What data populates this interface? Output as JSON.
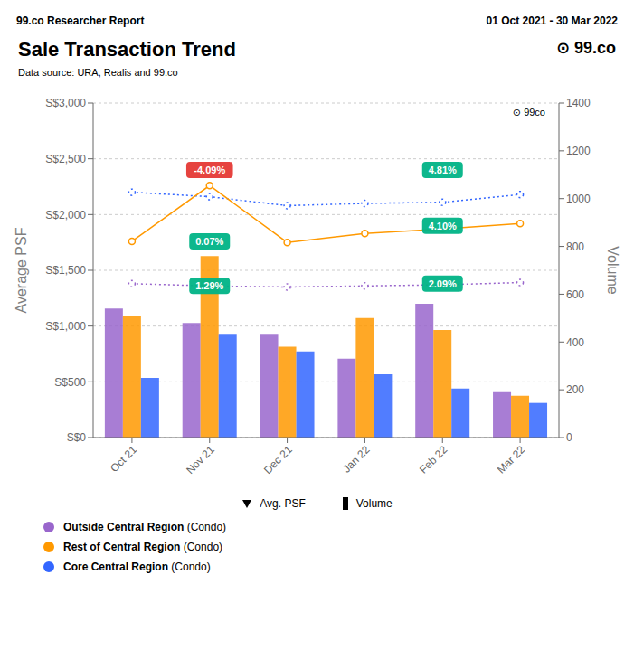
{
  "chart_data": {
    "type": "bar",
    "header_left": "99.co Researcher Report",
    "header_right": "01 Oct 2021 - 30 Mar 2022",
    "logo": "⊙ 99.co",
    "title": "Sale Transaction Trend",
    "subtitle": "Data source: URA, Realis and 99.co",
    "watermark": "⊙ 99co",
    "categories": [
      "Oct 21",
      "Nov 21",
      "Dec 21",
      "Jan 22",
      "Feb 22",
      "Mar 22"
    ],
    "series": [
      {
        "name": "Outside Central Region (Condo)",
        "type": "bar",
        "axis": "y2",
        "color": "#9966cc",
        "values": [
          540,
          480,
          430,
          330,
          560,
          190
        ]
      },
      {
        "name": "Rest of Central Region (Condo)",
        "type": "bar",
        "axis": "y2",
        "color": "#ff9900",
        "values": [
          510,
          760,
          380,
          500,
          450,
          175
        ]
      },
      {
        "name": "Core Central Region (Condo)",
        "type": "bar",
        "axis": "y2",
        "color": "#3366ff",
        "values": [
          250,
          430,
          360,
          265,
          205,
          145
        ]
      },
      {
        "type": "line",
        "color": "#3366ff",
        "marker": "circle",
        "line_style": "dotted",
        "values": [
          2200,
          2160,
          2080,
          2100,
          2110,
          2180
        ]
      },
      {
        "type": "line",
        "color": "#ff9900",
        "marker": "circle",
        "line_style": "solid",
        "values": [
          1760,
          2260,
          1750,
          1830,
          1870,
          1920
        ]
      },
      {
        "type": "line",
        "color": "#9966cc",
        "marker": "circle",
        "line_style": "dotted",
        "values": [
          1380,
          1360,
          1350,
          1360,
          1370,
          1390
        ]
      }
    ],
    "ylabel": "Average PSF",
    "y2label": "Volume",
    "ylim": [
      0,
      3000
    ],
    "yticks": [
      {
        "value": 0,
        "label": "S$0"
      },
      {
        "value": 500,
        "label": "S$500"
      },
      {
        "value": 1000,
        "label": "S$1,000"
      },
      {
        "value": 1500,
        "label": "S$1,500"
      },
      {
        "value": 2000,
        "label": "S$2,000"
      },
      {
        "value": 2500,
        "label": "S$2,500"
      },
      {
        "value": 3000,
        "label": "S$3,000"
      }
    ],
    "y2lim": [
      0,
      1400
    ],
    "y2ticks": [
      0,
      200,
      400,
      600,
      800,
      1000,
      1200,
      1400
    ],
    "grid": true,
    "legend_labels": {
      "line": "Avg. PSF",
      "bar": "Volume"
    },
    "annotations": [
      {
        "text": "-4.09%",
        "x": "Nov 21",
        "y": 2400,
        "color": "#e53935"
      },
      {
        "text": "0.07%",
        "x": "Nov 21",
        "y": 1760,
        "color": "#00b386"
      },
      {
        "text": "1.29%",
        "x": "Nov 21",
        "y": 1360,
        "color": "#00b386"
      },
      {
        "text": "4.81%",
        "x": "Feb 22",
        "y": 2400,
        "color": "#00b386"
      },
      {
        "text": "4.10%",
        "x": "Feb 22",
        "y": 1900,
        "color": "#00b386"
      },
      {
        "text": "2.09%",
        "x": "Feb 22",
        "y": 1380,
        "color": "#00b386"
      }
    ]
  }
}
